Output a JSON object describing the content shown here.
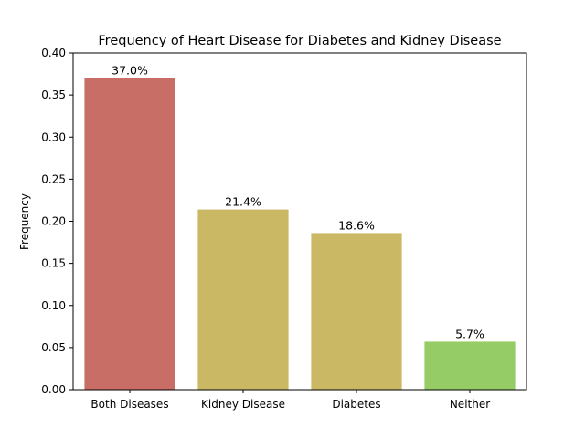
{
  "chart_data": {
    "type": "bar",
    "title": "Frequency of Heart Disease for Diabetes and Kidney Disease",
    "xlabel": "",
    "ylabel": "Frequency",
    "categories": [
      "Both Diseases",
      "Kidney Disease",
      "Diabetes",
      "Neither"
    ],
    "values": [
      0.37,
      0.214,
      0.186,
      0.057
    ],
    "data_labels": [
      "37.0%",
      "21.4%",
      "18.6%",
      "5.7%"
    ],
    "colors": [
      "#c96e66",
      "#cbb865",
      "#cbb865",
      "#95cc66"
    ],
    "ylim": [
      0,
      0.4
    ],
    "yticks": [
      0.0,
      0.05,
      0.1,
      0.15,
      0.2,
      0.25,
      0.3,
      0.35,
      0.4
    ],
    "ytick_labels": [
      "0.00",
      "0.05",
      "0.10",
      "0.15",
      "0.20",
      "0.25",
      "0.30",
      "0.35",
      "0.40"
    ],
    "grid": false,
    "legend": "none"
  }
}
